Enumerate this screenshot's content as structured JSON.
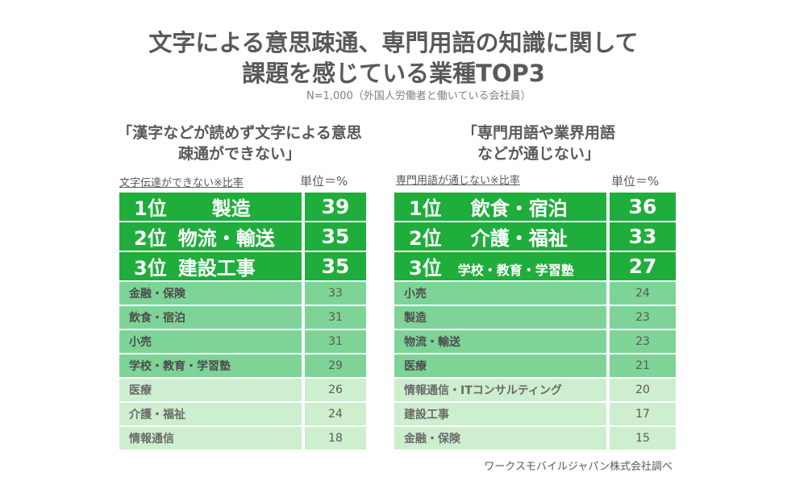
{
  "header": {
    "title_line1": "文字による意思疎通、専門用語の知識に関して",
    "title_line2": "課題を感じている業種TOP3",
    "sample": "N=1,000（外国人労働者と働いている会社員）"
  },
  "chart_data": [
    {
      "type": "table",
      "title_line1": "「漢字などが読めず文字による意思",
      "title_line2": "疎通ができない」",
      "subtitle": "文字伝達ができない※比率",
      "unit": "単位＝%",
      "rows": [
        {
          "rank": "1位",
          "name": "製造",
          "value": 39
        },
        {
          "rank": "2位",
          "name": "物流・輸送",
          "value": 35
        },
        {
          "rank": "3位",
          "name": "建設工事",
          "value": 35
        },
        {
          "name": "金融・保険",
          "value": 33
        },
        {
          "name": "飲食・宿泊",
          "value": 31
        },
        {
          "name": "小売",
          "value": 31
        },
        {
          "name": "学校・教育・学習塾",
          "value": 29
        },
        {
          "name": "医療",
          "value": 26
        },
        {
          "name": "介護・福祉",
          "value": 24
        },
        {
          "name": "情報通信",
          "value": 18
        }
      ]
    },
    {
      "type": "table",
      "title_line1": "「専門用語や業界用語",
      "title_line2": "などが通じない」",
      "subtitle": "専門用語が通じない※比率",
      "unit": "単位＝%",
      "rows": [
        {
          "rank": "1位",
          "name": "飲食・宿泊",
          "value": 36
        },
        {
          "rank": "2位",
          "name": "介護・福祉",
          "value": 33
        },
        {
          "rank": "3位",
          "name": "学校・教育・学習塾",
          "value": 27
        },
        {
          "name": "小売",
          "value": 24
        },
        {
          "name": "製造",
          "value": 23
        },
        {
          "name": "物流・輸送",
          "value": 23
        },
        {
          "name": "医療",
          "value": 21
        },
        {
          "name": "情報通信・ITコンサルティング",
          "value": 20
        },
        {
          "name": "建設工事",
          "value": 17
        },
        {
          "name": "金融・保険",
          "value": 15
        }
      ]
    }
  ],
  "footer": {
    "credit": "ワークスモバイルジャパン株式会社調べ"
  },
  "colors": {
    "top": "#1fad3b",
    "mid": "#7ed497",
    "low": "#cdeecf",
    "text": "#595959"
  }
}
